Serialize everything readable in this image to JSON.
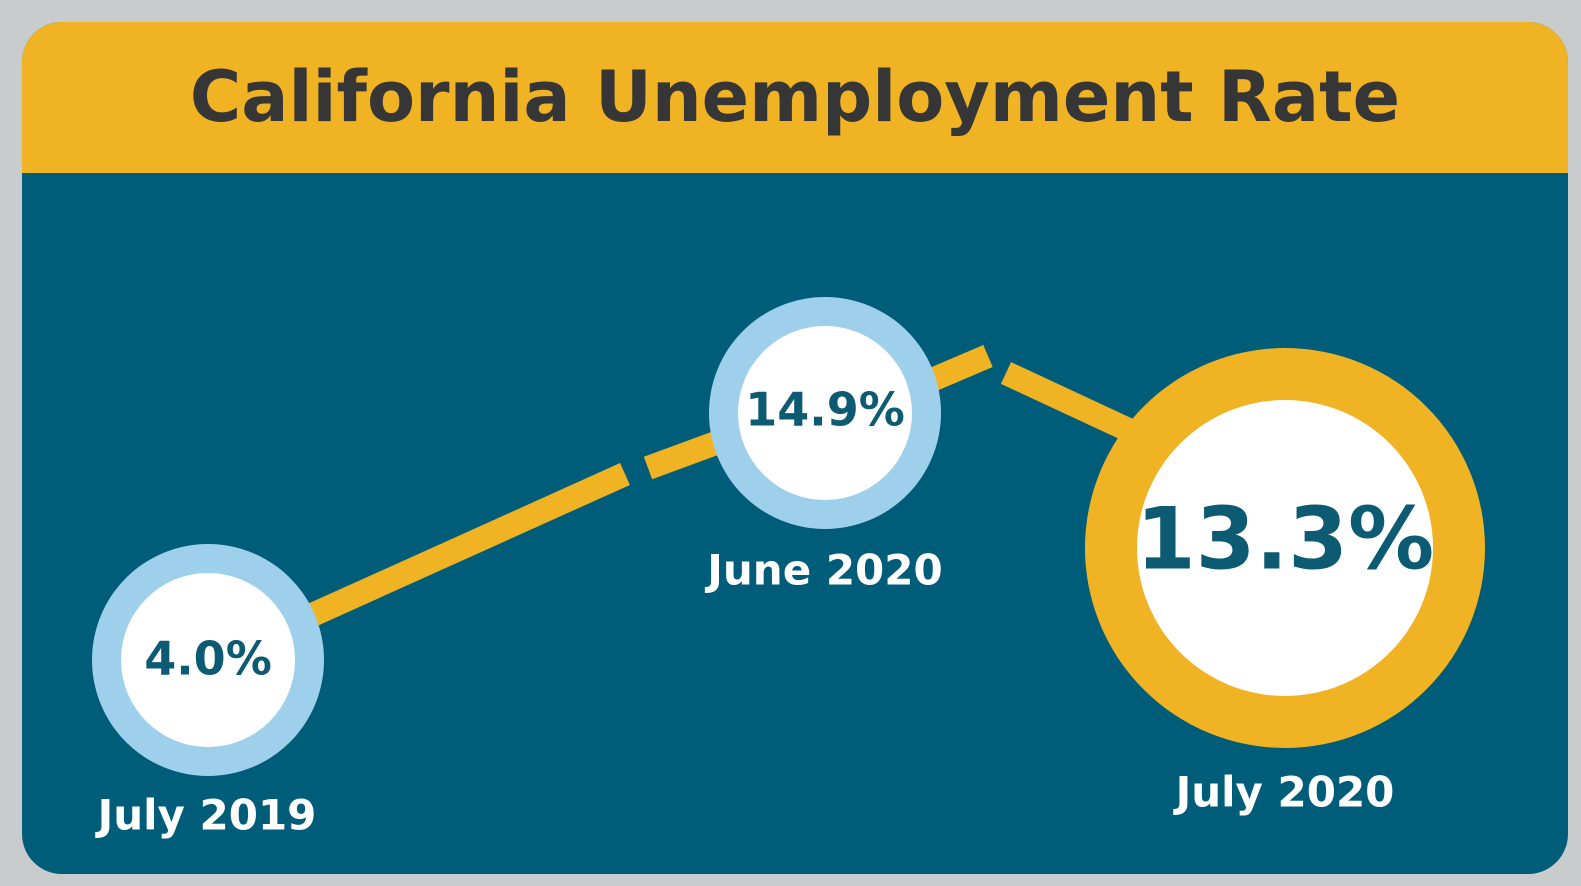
{
  "title": "California Unemployment Rate",
  "points": [
    {
      "period": "July 2019",
      "rate": "4.0%"
    },
    {
      "period": "June 2020",
      "rate": "14.9%"
    },
    {
      "period": "July 2020",
      "rate": "13.3%"
    }
  ]
}
